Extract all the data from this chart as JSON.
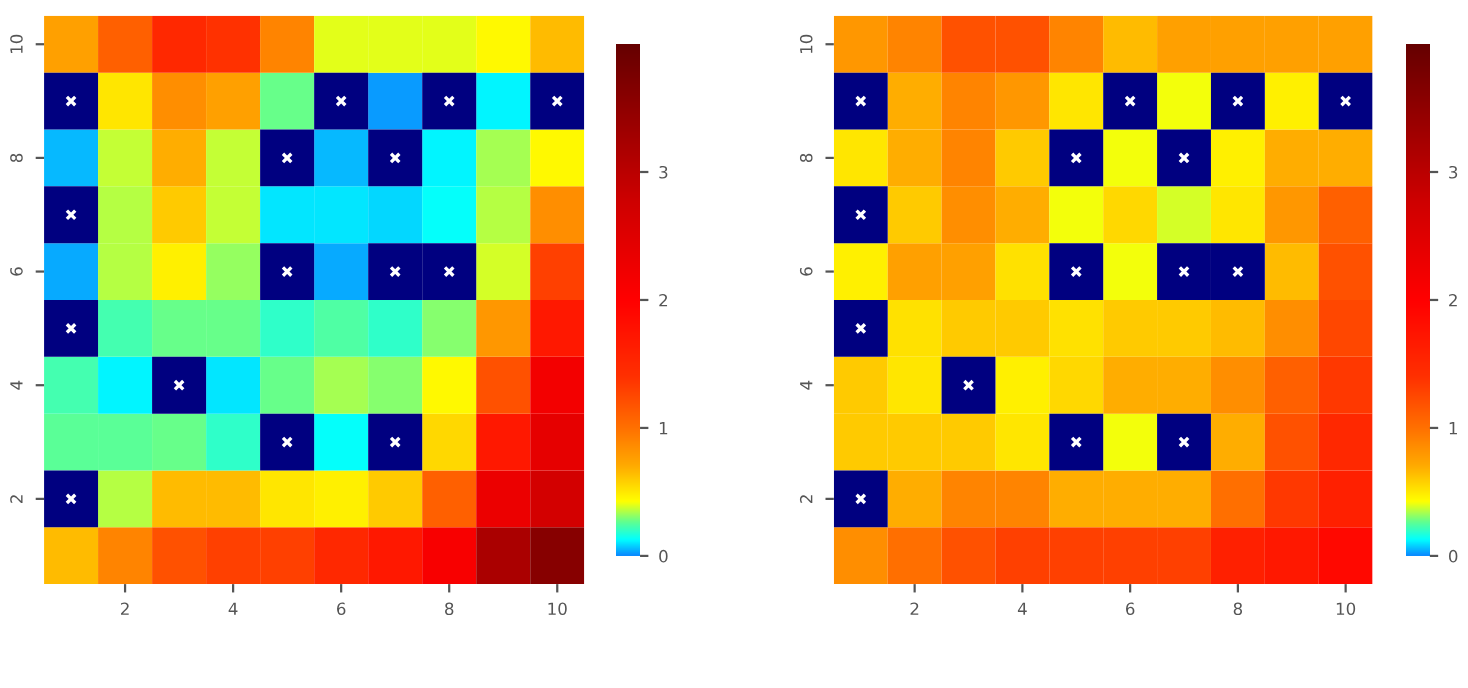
{
  "chart_data": [
    {
      "type": "heatmap",
      "categories": [
        null,
        "2",
        null,
        "4",
        null,
        "6",
        null,
        "8",
        null,
        "10"
      ],
      "y_categories": [
        "10",
        null,
        "8",
        null,
        "6",
        null,
        "4",
        null,
        "2",
        null
      ],
      "clim": [
        0,
        4
      ],
      "cticks": [
        0,
        1,
        2,
        3
      ],
      "cells": [
        [
          0.75,
          1.1,
          1.5,
          1.4,
          0.9,
          0.4,
          0.4,
          0.4,
          0.45,
          0.65
        ],
        [
          null,
          0.5,
          0.85,
          0.75,
          0.28,
          null,
          0.03,
          null,
          0.12,
          null
        ],
        [
          0.06,
          0.37,
          0.7,
          0.37,
          null,
          0.05,
          null,
          0.12,
          0.33,
          0.45
        ],
        [
          null,
          0.35,
          0.6,
          0.37,
          0.1,
          0.1,
          0.08,
          0.13,
          0.35,
          0.85
        ],
        [
          0.04,
          0.35,
          0.47,
          0.32,
          null,
          0.04,
          null,
          null,
          0.38,
          1.3
        ],
        [
          null,
          0.22,
          0.27,
          0.27,
          0.2,
          0.24,
          0.2,
          0.3,
          0.8,
          1.7
        ],
        [
          0.22,
          0.12,
          null,
          0.1,
          0.27,
          0.33,
          0.3,
          0.45,
          1.2,
          2.2
        ],
        [
          0.25,
          0.25,
          0.27,
          0.2,
          null,
          0.13,
          null,
          0.55,
          1.7,
          2.4
        ],
        [
          null,
          0.35,
          0.65,
          0.65,
          0.5,
          0.48,
          0.6,
          1.1,
          2.3,
          2.7
        ],
        [
          0.65,
          0.9,
          1.2,
          1.3,
          1.3,
          1.5,
          1.7,
          2.1,
          3.2,
          3.6
        ]
      ]
    },
    {
      "type": "heatmap",
      "categories": [
        null,
        "2",
        null,
        "4",
        null,
        "6",
        null,
        "8",
        null,
        "10"
      ],
      "y_categories": [
        "10",
        null,
        "8",
        null,
        "6",
        null,
        "4",
        null,
        "2",
        null
      ],
      "clim": [
        0,
        4
      ],
      "cticks": [
        0,
        1,
        2,
        3
      ],
      "cells": [
        [
          0.8,
          0.9,
          1.2,
          1.2,
          0.9,
          0.65,
          0.75,
          0.75,
          0.75,
          0.75
        ],
        [
          null,
          0.7,
          0.9,
          0.8,
          0.5,
          null,
          0.42,
          null,
          0.47,
          null
        ],
        [
          0.5,
          0.7,
          0.9,
          0.6,
          null,
          0.42,
          null,
          0.48,
          0.7,
          0.7
        ],
        [
          null,
          0.6,
          0.85,
          0.7,
          0.42,
          0.55,
          0.38,
          0.5,
          0.8,
          1.1
        ],
        [
          0.48,
          0.75,
          0.75,
          0.52,
          null,
          0.42,
          null,
          null,
          0.65,
          1.2
        ],
        [
          null,
          0.52,
          0.6,
          0.6,
          0.52,
          0.6,
          0.6,
          0.65,
          0.85,
          1.25
        ],
        [
          0.6,
          0.5,
          null,
          0.48,
          0.55,
          0.7,
          0.7,
          0.85,
          1.1,
          1.35
        ],
        [
          0.6,
          0.6,
          0.6,
          0.5,
          null,
          0.42,
          null,
          0.7,
          1.2,
          1.5
        ],
        [
          null,
          0.7,
          0.9,
          0.9,
          0.7,
          0.7,
          0.7,
          1.0,
          1.35,
          1.6
        ],
        [
          0.85,
          1.0,
          1.2,
          1.3,
          1.3,
          1.3,
          1.3,
          1.6,
          1.7,
          1.9
        ]
      ]
    }
  ]
}
